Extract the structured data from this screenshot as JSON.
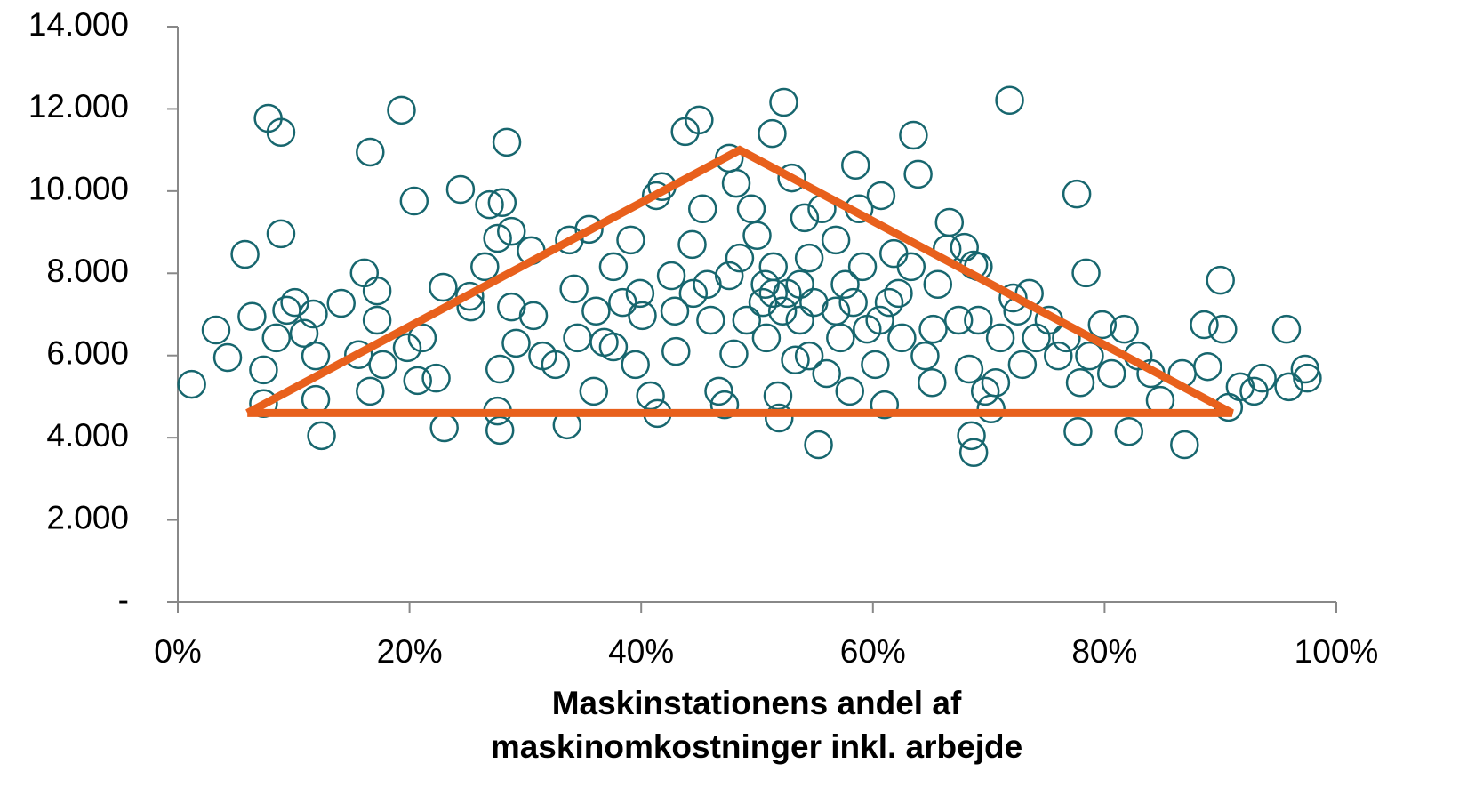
{
  "chart_data": {
    "type": "scatter",
    "x_label": [
      "Maskinstationens andel af",
      "maskinomkostninger inkl. arbejde"
    ],
    "xlim": [
      0,
      100
    ],
    "xticks": [
      {
        "value": 0,
        "label": "0%"
      },
      {
        "value": 20,
        "label": "20%"
      },
      {
        "value": 40,
        "label": "40%"
      },
      {
        "value": 60,
        "label": "60%"
      },
      {
        "value": 80,
        "label": "80%"
      },
      {
        "value": 100,
        "label": "100%"
      }
    ],
    "ylim": [
      0,
      14000
    ],
    "yticks": [
      {
        "value": 0,
        "label": "-"
      },
      {
        "value": 2000,
        "label": "2.000"
      },
      {
        "value": 4000,
        "label": "4.000"
      },
      {
        "value": 6000,
        "label": "6.000"
      },
      {
        "value": 8000,
        "label": "8.000"
      },
      {
        "value": 10000,
        "label": "10.000"
      },
      {
        "value": 12000,
        "label": "12.000"
      },
      {
        "value": 14000,
        "label": "14.000"
      }
    ],
    "grid": false,
    "series": [
      {
        "color": "#17666e",
        "x": [
          1.2,
          3.3,
          4.3,
          5.8,
          6.4,
          7.4,
          7.4,
          7.8,
          8.9,
          8.9,
          8.5,
          9.4,
          10.1,
          10.9,
          11.7,
          11.9,
          11.9,
          12.4,
          14.1,
          15.6,
          16.1,
          16.6,
          16.6,
          17.2,
          17.2,
          17.7,
          19.3,
          19.8,
          20.4,
          21.1,
          20.7,
          22.3,
          23.0,
          22.9,
          24.4,
          25.2,
          25.3,
          26.5,
          26.9,
          28.0,
          28.4,
          27.6,
          27.8,
          27.8,
          27.6,
          28.8,
          28.8,
          29.2,
          30.5,
          30.7,
          31.5,
          32.6,
          33.6,
          33.8,
          34.2,
          34.5,
          35.5,
          35.9,
          36.8,
          37.6,
          38.4,
          39.1,
          39.5,
          40.1,
          40.8,
          41.3,
          41.4,
          41.8,
          42.6,
          43.0,
          43.8,
          44.4,
          45.0,
          45.3,
          45.7,
          46.0,
          46.7,
          47.2,
          47.6,
          48.0,
          48.2,
          48.5,
          49.1,
          49.5,
          50.0,
          50.5,
          50.8,
          51.3,
          51.4,
          51.8,
          51.9,
          52.3,
          52.6,
          53.0,
          53.3,
          53.7,
          54.1,
          54.5,
          54.9,
          55.3,
          55.6,
          56.0,
          56.8,
          57.2,
          57.6,
          58.0,
          58.5,
          58.8,
          59.1,
          59.5,
          60.2,
          60.7,
          61.0,
          61.4,
          61.8,
          62.5,
          63.3,
          63.5,
          63.9,
          64.5,
          65.1,
          65.6,
          66.4,
          66.6,
          67.4,
          67.9,
          68.3,
          68.7,
          68.5,
          68.7,
          69.1,
          69.1,
          69.7,
          70.2,
          70.6,
          71.0,
          71.8,
          72.1,
          72.5,
          72.9,
          73.5,
          74.1,
          75.2,
          76.0,
          76.7,
          77.6,
          77.7,
          77.9,
          78.4,
          78.7,
          79.8,
          80.6,
          81.7,
          82.1,
          82.9,
          84.0,
          84.8,
          86.7,
          86.9,
          88.6,
          88.9,
          90.0,
          90.2,
          90.7,
          91.7,
          92.9,
          93.6,
          95.7,
          95.9,
          97.3,
          97.5,
          51.4,
          50.7,
          52.2,
          53.7,
          56.8,
          58.3,
          60.6,
          44.5,
          42.9,
          39.9,
          36.1,
          47.6,
          54.5,
          62.2,
          65.2,
          37.6
        ],
        "values": [
          5300,
          6620,
          5950,
          8460,
          6950,
          4830,
          5650,
          11770,
          11430,
          8960,
          6430,
          7100,
          7290,
          6540,
          7010,
          5990,
          4930,
          4050,
          7270,
          6020,
          8010,
          10950,
          5130,
          7570,
          6860,
          5780,
          11970,
          6190,
          9760,
          6430,
          5390,
          5450,
          4240,
          7660,
          10040,
          7440,
          7180,
          8160,
          9670,
          9720,
          11190,
          8850,
          5670,
          4180,
          4650,
          9020,
          7180,
          6300,
          8550,
          6970,
          5990,
          5780,
          4310,
          8810,
          7620,
          6430,
          9070,
          5130,
          6320,
          8160,
          7290,
          8810,
          5780,
          6970,
          5020,
          9890,
          4590,
          10110,
          7940,
          6100,
          11450,
          8700,
          11730,
          9570,
          7730,
          6860,
          5130,
          4800,
          10800,
          6040,
          10190,
          8370,
          6860,
          9570,
          8920,
          7290,
          6430,
          11400,
          8160,
          5020,
          4480,
          12160,
          7510,
          10320,
          5890,
          6860,
          9350,
          8370,
          7290,
          3830,
          9570,
          5560,
          8810,
          6430,
          7730,
          5130,
          10630,
          9570,
          8160,
          6640,
          5780,
          9890,
          4800,
          7290,
          8480,
          6430,
          8160,
          11360,
          10410,
          5990,
          5340,
          7730,
          8590,
          9240,
          6860,
          8630,
          5670,
          8200,
          4050,
          3640,
          8160,
          6860,
          5130,
          4700,
          5340,
          6430,
          12210,
          7400,
          7080,
          5780,
          7510,
          6430,
          6860,
          5990,
          6430,
          9930,
          4150,
          5340,
          8010,
          5990,
          6750,
          5560,
          6640,
          4150,
          5990,
          5560,
          4910,
          5560,
          3830,
          6750,
          5730,
          7830,
          6640,
          4740,
          5240,
          5130,
          5450,
          6640,
          5240,
          5670,
          5450,
          7510,
          7730,
          7080,
          7730,
          7080,
          7290,
          6860,
          7510,
          7080,
          7510,
          7080,
          7940,
          5990,
          7510,
          6640,
          6210
        ]
      }
    ],
    "triangle": {
      "color": "#e8601c",
      "x": [
        6,
        48.5,
        91,
        6
      ],
      "y": [
        4600,
        11000,
        4600,
        4600
      ]
    }
  }
}
